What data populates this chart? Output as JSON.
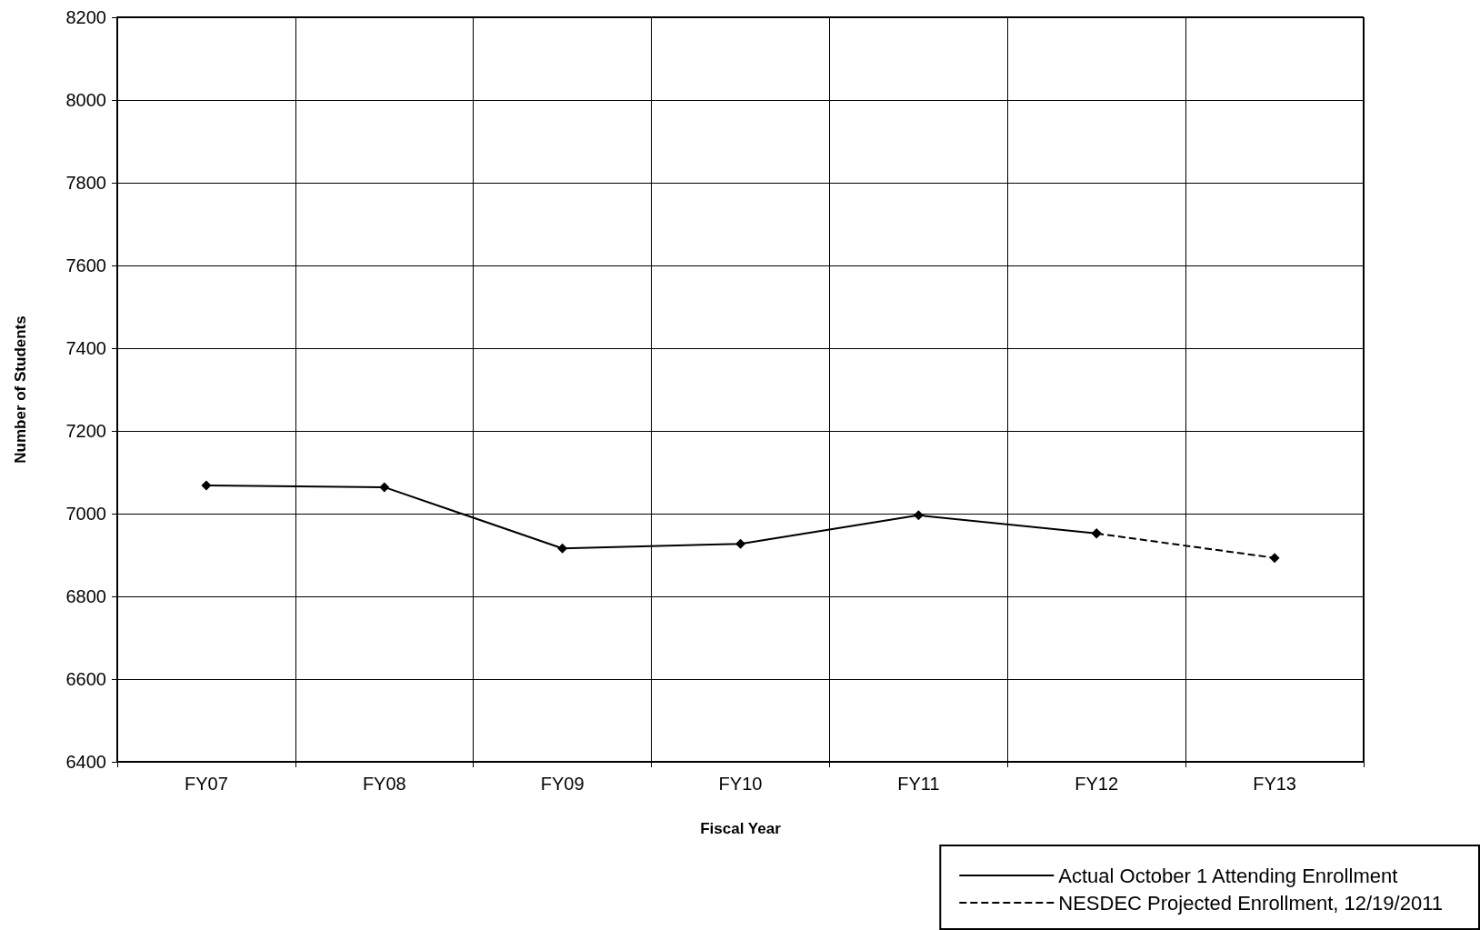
{
  "chart_data": {
    "type": "line",
    "xlabel": "Fiscal Year",
    "ylabel": "Number of Students",
    "categories": [
      "FY07",
      "FY08",
      "FY09",
      "FY10",
      "FY11",
      "FY12",
      "FY13"
    ],
    "series": [
      {
        "name": "Actual October 1 Attending Enrollment",
        "color": "#000000",
        "line_style": "solid",
        "values": [
          7068,
          7064,
          6916,
          6927,
          6996,
          6952,
          null
        ]
      },
      {
        "name": "NESDEC Projected Enrollment, 12/19/2011",
        "color": "#000000",
        "line_style": "dashed",
        "values": [
          null,
          null,
          null,
          null,
          null,
          6952,
          6893
        ]
      }
    ],
    "ylim": [
      6400,
      8200
    ],
    "yticks": [
      6400,
      6600,
      6800,
      7000,
      7200,
      7400,
      7600,
      7800,
      8000,
      8200
    ],
    "grid": true,
    "legend": "bottom right",
    "marker": "diamond"
  }
}
